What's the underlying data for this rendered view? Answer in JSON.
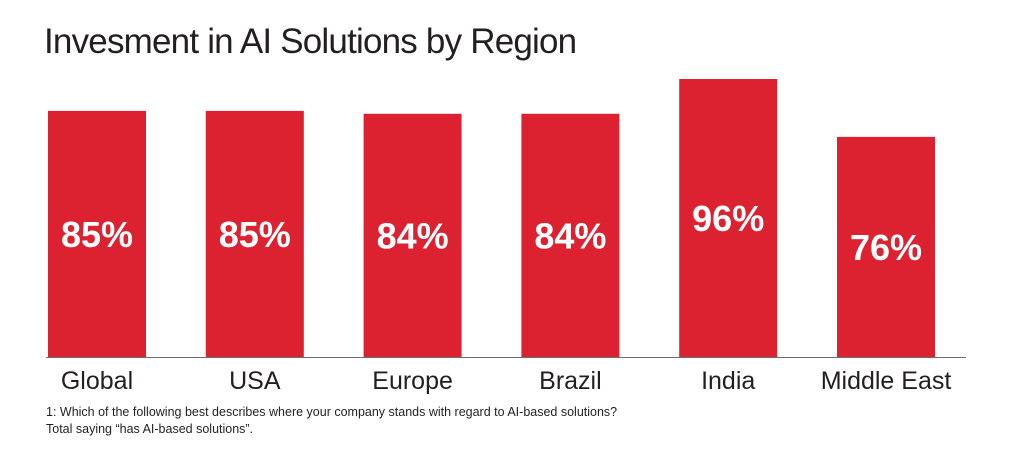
{
  "colors": {
    "bar": "#dc2231",
    "baseline": "#6d6e71",
    "bar_label": "#ffffff",
    "text": "#231f20"
  },
  "chart_data": {
    "type": "bar",
    "title": "Invesment in AI Solutions by Region",
    "xlabel": "",
    "ylabel": "",
    "ylim": [
      0,
      100
    ],
    "grid": false,
    "categories": [
      "Global",
      "USA",
      "Europe",
      "Brazil",
      "India",
      "Middle East"
    ],
    "values": [
      85,
      85,
      84,
      84,
      96,
      76
    ],
    "data_labels": [
      "85%",
      "85%",
      "84%",
      "84%",
      "96%",
      "76%"
    ]
  },
  "footnote": {
    "line1": "1: Which of the following best describes where your company stands with regard to AI-based solutions?",
    "line2": "Total saying “has AI-based solutions”."
  }
}
